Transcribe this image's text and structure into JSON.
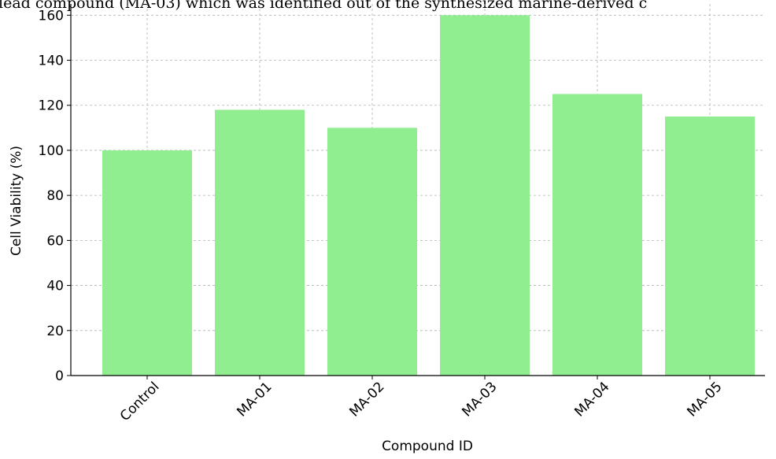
{
  "caption": "lead compound (MA-03) which was identified out of the synthesized marine-derived c",
  "chart_data": {
    "type": "bar",
    "categories": [
      "Control",
      "MA-01",
      "MA-02",
      "MA-03",
      "MA-04",
      "MA-05"
    ],
    "values": [
      100,
      118,
      110,
      160,
      125,
      115
    ],
    "title": "",
    "xlabel": "Compound ID",
    "ylabel": "Cell Viability (%)",
    "ylim": [
      0,
      165
    ],
    "yticks": [
      0,
      20,
      40,
      60,
      80,
      100,
      120,
      140,
      160
    ],
    "grid": true,
    "bar_color": "#90ee90",
    "grid_color": "#b0b0b0",
    "axis_color": "#000000"
  }
}
